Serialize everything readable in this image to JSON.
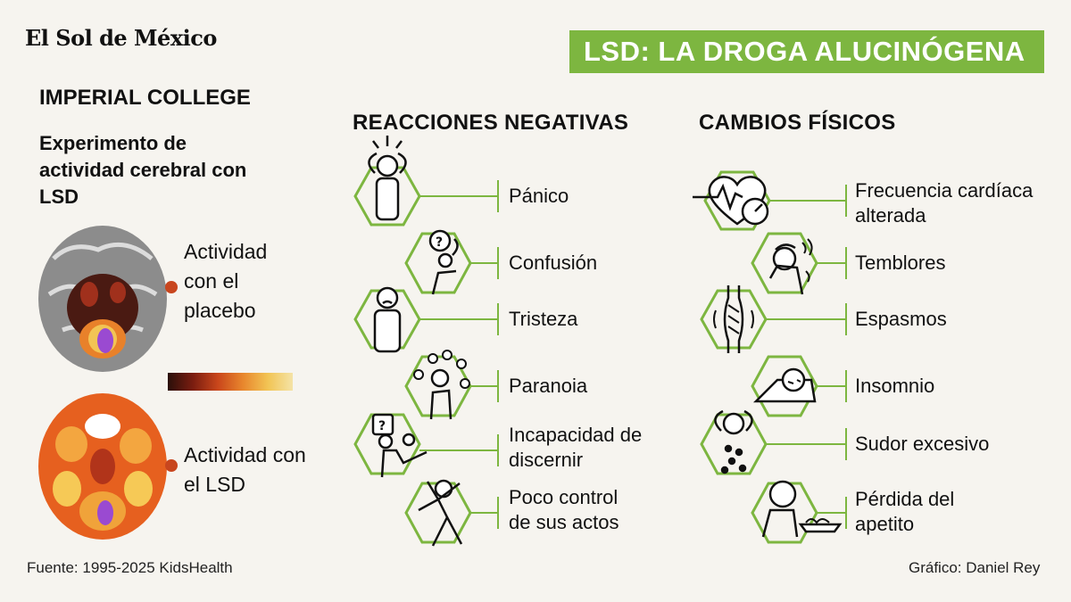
{
  "brand": {
    "logo": "El Sol de México"
  },
  "header": {
    "title": "LSD: LA DROGA ALUCINÓGENA"
  },
  "left": {
    "institution": "IMPERIAL COLLEGE",
    "experiment": "Experimento de actividad cerebral con LSD",
    "brains": [
      {
        "label": "Actividad con el placebo"
      },
      {
        "label": "Actividad con el  LSD"
      }
    ]
  },
  "negative": {
    "title": "REACCIONES NEGATIVAS",
    "items": [
      {
        "label": "Pánico",
        "icon": "panic-icon"
      },
      {
        "label": "Confusión",
        "icon": "confusion-icon"
      },
      {
        "label": "Tristeza",
        "icon": "sadness-icon"
      },
      {
        "label": "Paranoia",
        "icon": "paranoia-icon"
      },
      {
        "label": "Incapacidad de discernir",
        "icon": "discern-icon"
      },
      {
        "label": "Poco control de sus actos",
        "icon": "loss-control-icon"
      }
    ]
  },
  "physical": {
    "title": "CAMBIOS FÍSICOS",
    "items": [
      {
        "label": "Frecuencia cardíaca alterada",
        "icon": "heart-rate-icon"
      },
      {
        "label": "Temblores",
        "icon": "tremor-icon"
      },
      {
        "label": "Espasmos",
        "icon": "muscle-spasm-icon"
      },
      {
        "label": "Insomnio",
        "icon": "insomnia-icon"
      },
      {
        "label": "Sudor excesivo",
        "icon": "sweat-icon"
      },
      {
        "label": "Pérdida del apetito",
        "icon": "appetite-loss-icon"
      }
    ]
  },
  "footer": {
    "source": "Fuente: 1995-2025 KidsHealth",
    "credit": "Gráfico: Daniel Rey"
  },
  "colors": {
    "accent": "#7db640",
    "background": "#f6f4ef",
    "marker": "#c8461e"
  }
}
